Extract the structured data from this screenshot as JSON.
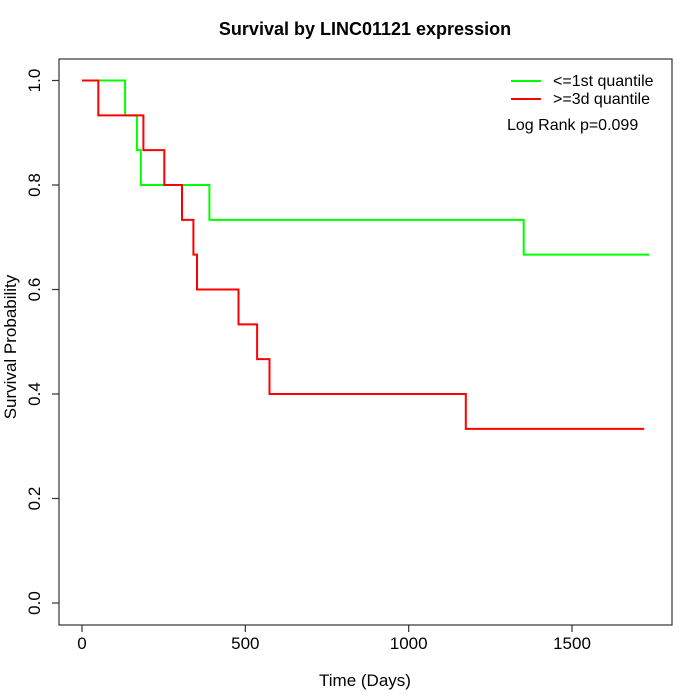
{
  "chart_data": {
    "type": "line",
    "subtype": "kaplan-meier-step",
    "title": "Survival by LINC01121 expression",
    "xlabel": "Time (Days)",
    "ylabel": "Survival Probability",
    "xlim": [
      0,
      1736
    ],
    "ylim": [
      0.0,
      1.0
    ],
    "x_ticks": [
      0,
      500,
      1000,
      1500
    ],
    "y_ticks": [
      "0.0",
      "0.2",
      "0.4",
      "0.6",
      "0.8",
      "1.0"
    ],
    "grid": false,
    "legend_position": "topright",
    "annotation": "Log Rank p=0.099",
    "axis_color": "#333333",
    "series": [
      {
        "name": "<=1st quantile",
        "color": "#00ff00",
        "end_time": 1736,
        "points": [
          [
            0,
            1.0
          ],
          [
            132,
            0.9333
          ],
          [
            168,
            0.8667
          ],
          [
            180,
            0.8
          ],
          [
            390,
            0.7333
          ],
          [
            1352,
            0.6667
          ]
        ]
      },
      {
        "name": ">=3d quantile",
        "color": "#ff0000",
        "end_time": 1721,
        "points": [
          [
            0,
            1.0
          ],
          [
            50,
            0.9333
          ],
          [
            188,
            0.8667
          ],
          [
            252,
            0.8
          ],
          [
            306,
            0.7333
          ],
          [
            341,
            0.6667
          ],
          [
            352,
            0.6
          ],
          [
            479,
            0.5333
          ],
          [
            536,
            0.4667
          ],
          [
            574,
            0.4
          ],
          [
            1175,
            0.3333
          ]
        ]
      }
    ]
  }
}
